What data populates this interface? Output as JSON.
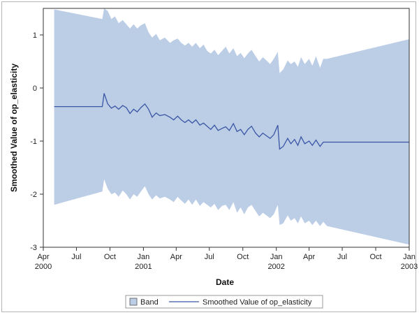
{
  "chart_data": {
    "type": "line",
    "xlabel": "Date",
    "ylabel": "Smoothed Value of op_elasticity",
    "ylim": [
      -3,
      1.5
    ],
    "xlim": [
      "2000-04-01",
      "2003-01-01"
    ],
    "y_ticks": [
      "1",
      "0",
      "-1",
      "-2",
      "-3"
    ],
    "x_ticks": [
      {
        "date": "2000-04-01",
        "label": "Apr",
        "year": "2000"
      },
      {
        "date": "2000-07-01",
        "label": "Jul",
        "year": ""
      },
      {
        "date": "2000-10-01",
        "label": "Oct",
        "year": ""
      },
      {
        "date": "2001-01-01",
        "label": "Jan",
        "year": "2001"
      },
      {
        "date": "2001-04-01",
        "label": "Apr",
        "year": ""
      },
      {
        "date": "2001-07-01",
        "label": "Jul",
        "year": ""
      },
      {
        "date": "2001-10-01",
        "label": "Oct",
        "year": ""
      },
      {
        "date": "2002-01-01",
        "label": "Jan",
        "year": "2002"
      },
      {
        "date": "2002-04-01",
        "label": "Apr",
        "year": ""
      },
      {
        "date": "2002-07-01",
        "label": "Jul",
        "year": ""
      },
      {
        "date": "2002-10-01",
        "label": "Oct",
        "year": ""
      },
      {
        "date": "2003-01-01",
        "label": "Jan",
        "year": "2003"
      }
    ],
    "legend": {
      "position": "bottom",
      "entries": [
        "Band",
        "Smoothed Value of op_elasticity"
      ]
    },
    "grid": false,
    "colors": {
      "band": "#bccde6",
      "line": "#3a56a4",
      "axis": "#333333"
    },
    "series": [
      {
        "name": "Smoothed Value of op_elasticity",
        "points": [
          [
            "2000-05-01",
            -0.35
          ],
          [
            "2000-09-10",
            -0.35
          ],
          [
            "2000-09-15",
            -0.1
          ],
          [
            "2000-09-25",
            -0.3
          ],
          [
            "2000-10-05",
            -0.38
          ],
          [
            "2000-10-15",
            -0.34
          ],
          [
            "2000-10-25",
            -0.4
          ],
          [
            "2000-11-05",
            -0.33
          ],
          [
            "2000-11-15",
            -0.37
          ],
          [
            "2000-11-25",
            -0.48
          ],
          [
            "2000-12-05",
            -0.4
          ],
          [
            "2000-12-15",
            -0.45
          ],
          [
            "2000-12-25",
            -0.37
          ],
          [
            "2001-01-05",
            -0.3
          ],
          [
            "2001-01-15",
            -0.4
          ],
          [
            "2001-01-25",
            -0.55
          ],
          [
            "2001-02-05",
            -0.47
          ],
          [
            "2001-02-15",
            -0.52
          ],
          [
            "2001-03-01",
            -0.5
          ],
          [
            "2001-03-15",
            -0.55
          ],
          [
            "2001-03-25",
            -0.6
          ],
          [
            "2001-04-05",
            -0.53
          ],
          [
            "2001-04-15",
            -0.6
          ],
          [
            "2001-04-25",
            -0.65
          ],
          [
            "2001-05-05",
            -0.6
          ],
          [
            "2001-05-15",
            -0.66
          ],
          [
            "2001-05-25",
            -0.6
          ],
          [
            "2001-06-05",
            -0.7
          ],
          [
            "2001-06-15",
            -0.66
          ],
          [
            "2001-06-25",
            -0.72
          ],
          [
            "2001-07-05",
            -0.78
          ],
          [
            "2001-07-15",
            -0.7
          ],
          [
            "2001-07-25",
            -0.8
          ],
          [
            "2001-08-05",
            -0.76
          ],
          [
            "2001-08-15",
            -0.73
          ],
          [
            "2001-08-25",
            -0.8
          ],
          [
            "2001-09-05",
            -0.67
          ],
          [
            "2001-09-15",
            -0.82
          ],
          [
            "2001-09-25",
            -0.78
          ],
          [
            "2001-10-05",
            -0.88
          ],
          [
            "2001-10-15",
            -0.78
          ],
          [
            "2001-10-25",
            -0.72
          ],
          [
            "2001-11-05",
            -0.85
          ],
          [
            "2001-11-15",
            -0.92
          ],
          [
            "2001-11-25",
            -0.85
          ],
          [
            "2001-12-05",
            -0.9
          ],
          [
            "2001-12-15",
            -0.95
          ],
          [
            "2001-12-25",
            -0.88
          ],
          [
            "2002-01-05",
            -0.7
          ],
          [
            "2002-01-10",
            -1.15
          ],
          [
            "2002-01-20",
            -1.1
          ],
          [
            "2002-02-01",
            -0.95
          ],
          [
            "2002-02-10",
            -1.05
          ],
          [
            "2002-02-20",
            -0.97
          ],
          [
            "2002-03-01",
            -1.08
          ],
          [
            "2002-03-10",
            -0.92
          ],
          [
            "2002-03-20",
            -1.05
          ],
          [
            "2002-04-01",
            -1.0
          ],
          [
            "2002-04-10",
            -1.08
          ],
          [
            "2002-04-20",
            -0.98
          ],
          [
            "2002-05-01",
            -1.1
          ],
          [
            "2002-05-10",
            -1.02
          ],
          [
            "2002-05-20",
            -1.02
          ],
          [
            "2003-01-01",
            -1.02
          ]
        ]
      }
    ],
    "band": {
      "name": "Band",
      "upper": [
        [
          "2000-05-01",
          1.48
        ],
        [
          "2000-09-10",
          1.3
        ],
        [
          "2000-09-15",
          1.5
        ],
        [
          "2000-09-25",
          1.45
        ],
        [
          "2000-10-05",
          1.3
        ],
        [
          "2000-10-15",
          1.35
        ],
        [
          "2000-10-25",
          1.22
        ],
        [
          "2000-11-05",
          1.28
        ],
        [
          "2000-11-15",
          1.2
        ],
        [
          "2000-11-25",
          1.12
        ],
        [
          "2000-12-05",
          1.2
        ],
        [
          "2000-12-15",
          1.12
        ],
        [
          "2000-12-25",
          1.18
        ],
        [
          "2001-01-05",
          1.22
        ],
        [
          "2001-01-15",
          1.05
        ],
        [
          "2001-01-25",
          0.95
        ],
        [
          "2001-02-05",
          1.02
        ],
        [
          "2001-02-15",
          0.9
        ],
        [
          "2001-03-01",
          0.95
        ],
        [
          "2001-03-15",
          0.85
        ],
        [
          "2001-03-25",
          0.9
        ],
        [
          "2001-04-05",
          0.93
        ],
        [
          "2001-04-15",
          0.85
        ],
        [
          "2001-04-25",
          0.8
        ],
        [
          "2001-05-05",
          0.85
        ],
        [
          "2001-05-15",
          0.78
        ],
        [
          "2001-05-25",
          0.85
        ],
        [
          "2001-06-05",
          0.75
        ],
        [
          "2001-06-15",
          0.82
        ],
        [
          "2001-06-25",
          0.7
        ],
        [
          "2001-07-05",
          0.65
        ],
        [
          "2001-07-15",
          0.72
        ],
        [
          "2001-07-25",
          0.62
        ],
        [
          "2001-08-05",
          0.7
        ],
        [
          "2001-08-15",
          0.78
        ],
        [
          "2001-08-25",
          0.65
        ],
        [
          "2001-09-05",
          0.75
        ],
        [
          "2001-09-15",
          0.6
        ],
        [
          "2001-09-25",
          0.66
        ],
        [
          "2001-10-05",
          0.56
        ],
        [
          "2001-10-15",
          0.65
        ],
        [
          "2001-10-25",
          0.72
        ],
        [
          "2001-11-05",
          0.6
        ],
        [
          "2001-11-15",
          0.5
        ],
        [
          "2001-11-25",
          0.58
        ],
        [
          "2001-12-05",
          0.52
        ],
        [
          "2001-12-15",
          0.45
        ],
        [
          "2001-12-25",
          0.55
        ],
        [
          "2002-01-05",
          0.68
        ],
        [
          "2002-01-10",
          0.28
        ],
        [
          "2002-01-20",
          0.35
        ],
        [
          "2002-02-01",
          0.52
        ],
        [
          "2002-02-10",
          0.45
        ],
        [
          "2002-02-20",
          0.5
        ],
        [
          "2002-03-01",
          0.4
        ],
        [
          "2002-03-10",
          0.58
        ],
        [
          "2002-03-20",
          0.45
        ],
        [
          "2002-04-01",
          0.55
        ],
        [
          "2002-04-10",
          0.42
        ],
        [
          "2002-04-20",
          0.6
        ],
        [
          "2002-05-01",
          0.38
        ],
        [
          "2002-05-10",
          0.55
        ],
        [
          "2002-05-20",
          0.55
        ],
        [
          "2003-01-01",
          0.92
        ]
      ],
      "lower": [
        [
          "2000-05-01",
          -2.2
        ],
        [
          "2000-09-10",
          -1.95
        ],
        [
          "2000-09-15",
          -1.72
        ],
        [
          "2000-09-25",
          -1.9
        ],
        [
          "2000-10-05",
          -2.0
        ],
        [
          "2000-10-15",
          -1.97
        ],
        [
          "2000-10-25",
          -2.05
        ],
        [
          "2000-11-05",
          -1.93
        ],
        [
          "2000-11-15",
          -2.0
        ],
        [
          "2000-11-25",
          -2.1
        ],
        [
          "2000-12-05",
          -2.0
        ],
        [
          "2000-12-15",
          -2.05
        ],
        [
          "2000-12-25",
          -1.95
        ],
        [
          "2001-01-05",
          -1.85
        ],
        [
          "2001-01-15",
          -2.0
        ],
        [
          "2001-01-25",
          -2.1
        ],
        [
          "2001-02-05",
          -2.02
        ],
        [
          "2001-02-15",
          -2.08
        ],
        [
          "2001-03-01",
          -2.05
        ],
        [
          "2001-03-15",
          -2.1
        ],
        [
          "2001-03-25",
          -2.15
        ],
        [
          "2001-04-05",
          -2.05
        ],
        [
          "2001-04-15",
          -2.12
        ],
        [
          "2001-04-25",
          -2.18
        ],
        [
          "2001-05-05",
          -2.1
        ],
        [
          "2001-05-15",
          -2.2
        ],
        [
          "2001-05-25",
          -2.1
        ],
        [
          "2001-06-05",
          -2.22
        ],
        [
          "2001-06-15",
          -2.15
        ],
        [
          "2001-06-25",
          -2.2
        ],
        [
          "2001-07-05",
          -2.25
        ],
        [
          "2001-07-15",
          -2.18
        ],
        [
          "2001-07-25",
          -2.3
        ],
        [
          "2001-08-05",
          -2.22
        ],
        [
          "2001-08-15",
          -2.2
        ],
        [
          "2001-08-25",
          -2.3
        ],
        [
          "2001-09-05",
          -2.15
        ],
        [
          "2001-09-15",
          -2.35
        ],
        [
          "2001-09-25",
          -2.25
        ],
        [
          "2001-10-05",
          -2.38
        ],
        [
          "2001-10-15",
          -2.25
        ],
        [
          "2001-10-25",
          -2.2
        ],
        [
          "2001-11-05",
          -2.32
        ],
        [
          "2001-11-15",
          -2.42
        ],
        [
          "2001-11-25",
          -2.35
        ],
        [
          "2001-12-05",
          -2.4
        ],
        [
          "2001-12-15",
          -2.45
        ],
        [
          "2001-12-25",
          -2.38
        ],
        [
          "2002-01-05",
          -2.2
        ],
        [
          "2002-01-10",
          -2.58
        ],
        [
          "2002-01-20",
          -2.55
        ],
        [
          "2002-02-01",
          -2.4
        ],
        [
          "2002-02-10",
          -2.5
        ],
        [
          "2002-02-20",
          -2.45
        ],
        [
          "2002-03-01",
          -2.55
        ],
        [
          "2002-03-10",
          -2.42
        ],
        [
          "2002-03-20",
          -2.55
        ],
        [
          "2002-04-01",
          -2.5
        ],
        [
          "2002-04-10",
          -2.58
        ],
        [
          "2002-04-20",
          -2.5
        ],
        [
          "2002-05-01",
          -2.6
        ],
        [
          "2002-05-10",
          -2.52
        ],
        [
          "2002-05-20",
          -2.6
        ],
        [
          "2003-01-01",
          -2.95
        ]
      ]
    }
  }
}
